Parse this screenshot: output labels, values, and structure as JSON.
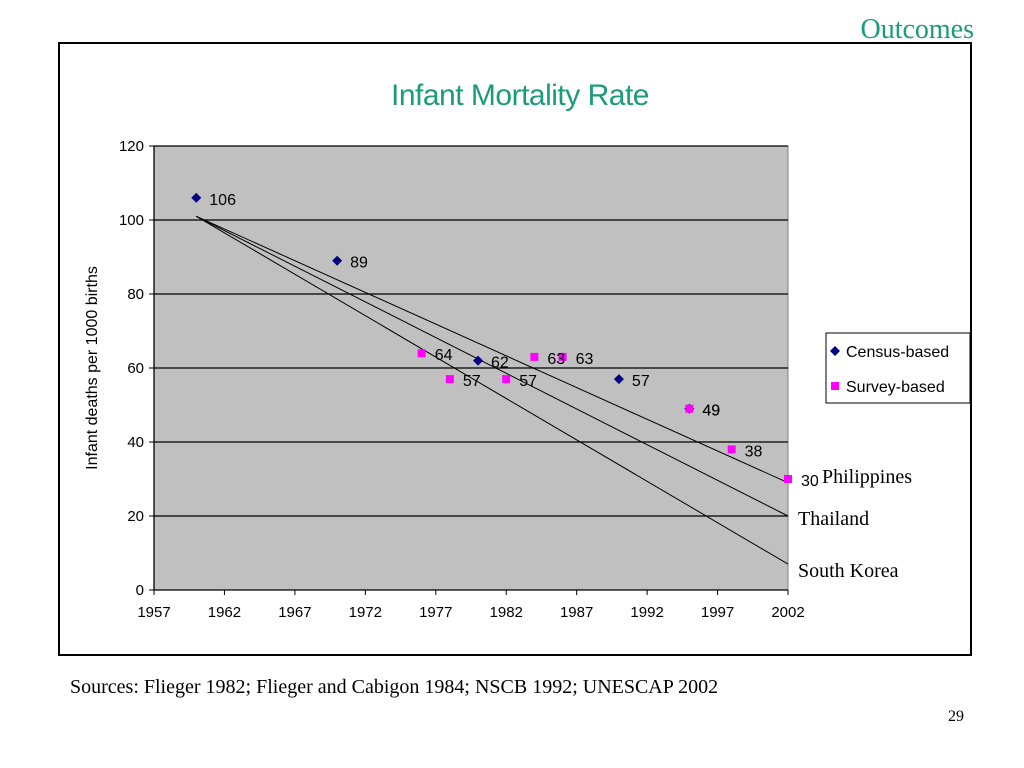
{
  "slide": {
    "heading": "Outcomes",
    "sources": "Sources: Flieger 1982; Flieger and Cabigon 1984; NSCB 1992; UNESCAP 2002",
    "page_number": "29"
  },
  "colors": {
    "heading": "#1a9b7a",
    "census": "#000080",
    "survey": "#ff00ff",
    "plot_bg": "#c0c0c0"
  },
  "chart_data": {
    "type": "scatter",
    "title": "Infant Mortality Rate",
    "ylabel": "Infant deaths per 1000 births",
    "xlabel": "",
    "xlim": [
      1957,
      2002
    ],
    "ylim": [
      0,
      120
    ],
    "xticks": [
      1957,
      1962,
      1967,
      1972,
      1977,
      1982,
      1987,
      1992,
      1997,
      2002
    ],
    "yticks": [
      0,
      20,
      40,
      60,
      80,
      100,
      120
    ],
    "grid": "horizontal",
    "legend": "right",
    "series": [
      {
        "name": "Census-based",
        "marker": "diamond",
        "points": [
          {
            "x": 1960,
            "y": 106,
            "label": "106"
          },
          {
            "x": 1970,
            "y": 89,
            "label": "89"
          },
          {
            "x": 1980,
            "y": 62,
            "label": "62"
          },
          {
            "x": 1990,
            "y": 57,
            "label": "57"
          },
          {
            "x": 1995,
            "y": 49,
            "label": "49"
          }
        ]
      },
      {
        "name": "Survey-based",
        "marker": "square",
        "points": [
          {
            "x": 1976,
            "y": 64,
            "label": "64"
          },
          {
            "x": 1978,
            "y": 57,
            "label": "57"
          },
          {
            "x": 1982,
            "y": 57,
            "label": "57"
          },
          {
            "x": 1984,
            "y": 63,
            "label": "63"
          },
          {
            "x": 1986,
            "y": 63,
            "label": "63"
          },
          {
            "x": 1995,
            "y": 49,
            "label": "49"
          },
          {
            "x": 1998,
            "y": 38,
            "label": "38"
          },
          {
            "x": 2002,
            "y": 30,
            "label": "30"
          }
        ]
      }
    ],
    "trend_lines": [
      {
        "name": "Philippines",
        "from": [
          1960,
          101
        ],
        "to": [
          2002,
          29
        ]
      },
      {
        "name": "Thailand",
        "from": [
          1960,
          101
        ],
        "to": [
          2002,
          20
        ]
      },
      {
        "name": "South Korea",
        "from": [
          1960,
          101
        ],
        "to": [
          2002,
          7
        ]
      }
    ]
  }
}
